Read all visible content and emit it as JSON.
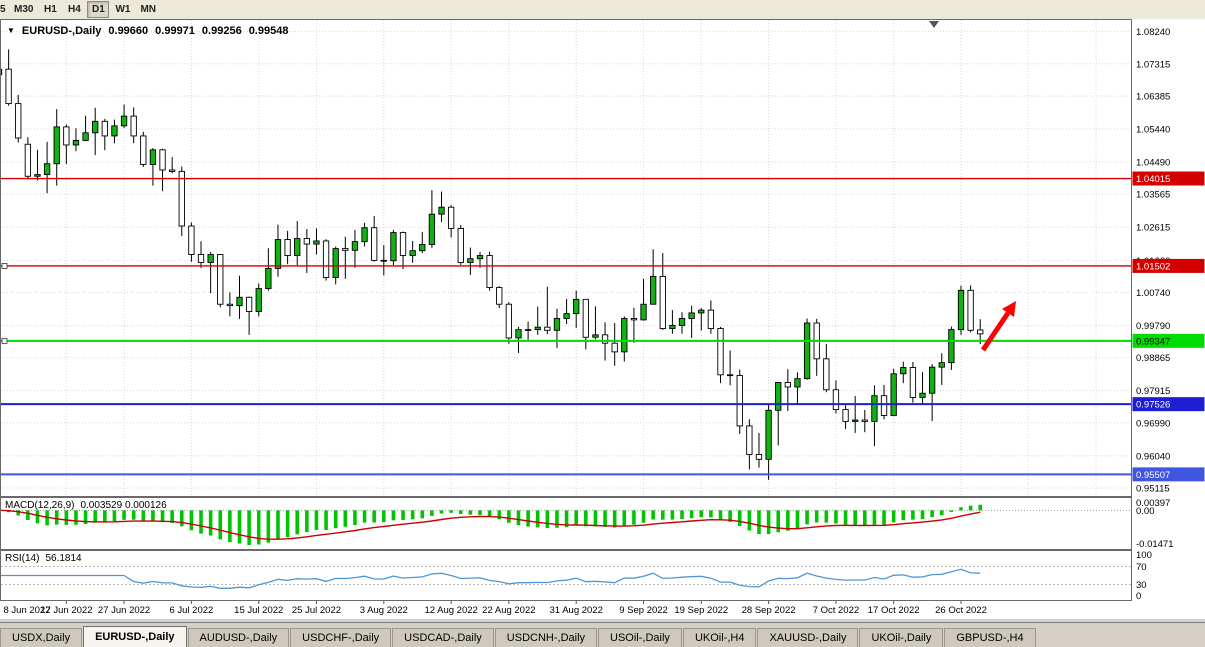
{
  "toolbar": {
    "timeframes": [
      "5",
      "M30",
      "H1",
      "H4",
      "D1",
      "W1",
      "MN"
    ],
    "active_timeframe": "D1"
  },
  "icons": {
    "symbol_dropdown": "▼"
  },
  "chart_header": {
    "symbol": "EURUSD-,Daily",
    "open": "0.99660",
    "high": "0.99971",
    "low": "0.99256",
    "close": "0.99548"
  },
  "chart_data": {
    "type": "candlestick",
    "symbol": "EURUSD-",
    "timeframe": "Daily",
    "x_labels": [
      "8 Jun 2022",
      "17 Jun 2022",
      "27 Jun 2022",
      "6 Jul 2022",
      "15 Jul 2022",
      "25 Jul 2022",
      "3 Aug 2022",
      "12 Aug 2022",
      "22 Aug 2022",
      "31 Aug 2022",
      "9 Sep 2022",
      "19 Sep 2022",
      "28 Sep 2022",
      "7 Oct 2022",
      "17 Oct 2022",
      "26 Oct 2022"
    ],
    "x_label_indices": [
      0,
      7,
      13,
      20,
      27,
      33,
      40,
      47,
      53,
      60,
      67,
      73,
      80,
      87,
      93,
      100
    ],
    "extra_grid_x": [
      1028,
      1096
    ],
    "y_axis_labels": [
      "1.08240",
      "1.07315",
      "1.06385",
      "1.05440",
      "1.04490",
      "1.03565",
      "1.02615",
      "1.01660",
      "1.00740",
      "0.99790",
      "0.98865",
      "0.97915",
      "0.96990",
      "0.96040",
      "0.95115"
    ],
    "y_range": [
      0.95,
      1.0843
    ],
    "colors": {
      "up": "#12b212",
      "down": "#ffffff",
      "outline": "#000000",
      "grid": "#d6d6d6"
    },
    "arrow_color": "#ff0000",
    "hlines": [
      {
        "price": 1.04015,
        "label": "1.04015",
        "color": "#d40000",
        "text_color": "#ffffff",
        "width": 1.4,
        "handle": false
      },
      {
        "price": 1.01502,
        "label": "1.01502",
        "color": "#d40000",
        "text_color": "#ffffff",
        "width": 1.4,
        "handle": true
      },
      {
        "price": 0.99347,
        "label": "0.99347",
        "color": "#00dc00",
        "text_color": "#000000",
        "width": 2,
        "handle": true
      },
      {
        "price": 0.97526,
        "label": "0.97526",
        "color": "#1e1ed2",
        "text_color": "#ffffff",
        "width": 2,
        "handle": false
      },
      {
        "price": 0.95507,
        "label": "0.95507",
        "color": "#4156e0",
        "text_color": "#ffffff",
        "width": 2,
        "handle": false
      }
    ],
    "candles": [
      [
        1.07,
        1.0749,
        1.069,
        1.0716
      ],
      [
        1.0716,
        1.0773,
        1.0611,
        1.0617
      ],
      [
        1.0617,
        1.0642,
        1.0505,
        1.0518
      ],
      [
        1.05,
        1.052,
        1.0399,
        1.0408
      ],
      [
        1.0408,
        1.0484,
        1.0396,
        1.0413
      ],
      [
        1.0413,
        1.0507,
        1.0359,
        1.0444
      ],
      [
        1.0444,
        1.0601,
        1.0381,
        1.055
      ],
      [
        1.055,
        1.0557,
        1.0443,
        1.0498
      ],
      [
        1.0498,
        1.0546,
        1.048,
        1.0511
      ],
      [
        1.0511,
        1.0582,
        1.0509,
        1.0533
      ],
      [
        1.0533,
        1.0605,
        1.0469,
        1.0566
      ],
      [
        1.0566,
        1.0573,
        1.0483,
        1.0524
      ],
      [
        1.0524,
        1.0571,
        1.0503,
        1.0553
      ],
      [
        1.0553,
        1.0614,
        1.0547,
        1.0581
      ],
      [
        1.0581,
        1.0606,
        1.0503,
        1.0524
      ],
      [
        1.0524,
        1.0536,
        1.0435,
        1.0442
      ],
      [
        1.0442,
        1.0489,
        1.0381,
        1.0484
      ],
      [
        1.0484,
        1.0487,
        1.0365,
        1.0426
      ],
      [
        1.0426,
        1.0463,
        1.0417,
        1.0422
      ],
      [
        1.0422,
        1.0436,
        1.0236,
        1.0265
      ],
      [
        1.0265,
        1.0275,
        1.0162,
        1.0183
      ],
      [
        1.0183,
        1.0221,
        1.0144,
        1.016
      ],
      [
        1.016,
        1.019,
        1.0072,
        1.0183
      ],
      [
        1.0183,
        1.0184,
        1.0031,
        1.004
      ],
      [
        1.004,
        1.0074,
        1.0005,
        1.0036
      ],
      [
        1.0036,
        1.0122,
        0.9998,
        1.006
      ],
      [
        1.006,
        1.0062,
        0.9952,
        1.0019
      ],
      [
        1.0019,
        1.01,
        1.0005,
        1.0085
      ],
      [
        1.0085,
        1.0201,
        1.0079,
        1.0143
      ],
      [
        1.0143,
        1.0269,
        1.0119,
        1.0226
      ],
      [
        1.0226,
        1.0251,
        1.0155,
        1.018
      ],
      [
        1.018,
        1.0279,
        1.0152,
        1.0229
      ],
      [
        1.0229,
        1.0256,
        1.013,
        1.0213
      ],
      [
        1.0213,
        1.0258,
        1.0183,
        1.0222
      ],
      [
        1.0222,
        1.0227,
        1.0108,
        1.0117
      ],
      [
        1.0117,
        1.0206,
        1.0097,
        1.02
      ],
      [
        1.02,
        1.0234,
        1.0113,
        1.0195
      ],
      [
        1.0195,
        1.0254,
        1.0145,
        1.022
      ],
      [
        1.022,
        1.0274,
        1.0206,
        1.026
      ],
      [
        1.026,
        1.0294,
        1.0163,
        1.0166
      ],
      [
        1.0166,
        1.021,
        1.0123,
        1.0165
      ],
      [
        1.0165,
        1.0254,
        1.0152,
        1.0246
      ],
      [
        1.0246,
        1.0249,
        1.0141,
        1.018
      ],
      [
        1.018,
        1.0222,
        1.0159,
        1.0194
      ],
      [
        1.0194,
        1.0248,
        1.0187,
        1.0212
      ],
      [
        1.0212,
        1.0368,
        1.0202,
        1.0299
      ],
      [
        1.0299,
        1.0364,
        1.0276,
        1.0319
      ],
      [
        1.0319,
        1.0325,
        1.0232,
        1.0258
      ],
      [
        1.0258,
        1.0268,
        1.0153,
        1.016
      ],
      [
        1.016,
        1.0203,
        1.0124,
        1.0171
      ],
      [
        1.0171,
        1.019,
        1.0145,
        1.018
      ],
      [
        1.018,
        1.0191,
        1.0079,
        1.0088
      ],
      [
        1.0088,
        1.0092,
        1.0029,
        1.004
      ],
      [
        1.004,
        1.0046,
        0.9926,
        0.9943
      ],
      [
        0.9943,
        0.9975,
        0.99,
        0.9967
      ],
      [
        0.9967,
        0.999,
        0.9938,
        0.9967
      ],
      [
        0.9967,
        1.0033,
        0.9952,
        0.9974
      ],
      [
        0.9974,
        1.009,
        0.9954,
        0.9965
      ],
      [
        0.9965,
        1.0027,
        0.9914,
        0.9999
      ],
      [
        0.9999,
        1.0055,
        0.9983,
        1.0013
      ],
      [
        1.0013,
        1.0079,
        0.9972,
        1.0054
      ],
      [
        1.0054,
        1.0055,
        0.991,
        0.9945
      ],
      [
        0.9945,
        1.0034,
        0.9939,
        0.9952
      ],
      [
        0.9952,
        0.9988,
        0.9878,
        0.9928
      ],
      [
        0.9928,
        0.9986,
        0.9863,
        0.9903
      ],
      [
        0.9903,
        1.0005,
        0.9875,
        0.9999
      ],
      [
        0.9999,
        1.003,
        0.9929,
        0.9995
      ],
      [
        0.9995,
        1.0113,
        0.9993,
        1.004
      ],
      [
        1.004,
        1.0198,
        1.004,
        1.012
      ],
      [
        1.012,
        1.0187,
        0.9966,
        0.997
      ],
      [
        0.997,
        1.0023,
        0.9955,
        0.9979
      ],
      [
        0.9979,
        1.0017,
        0.9955,
        0.9999
      ],
      [
        0.9999,
        1.0036,
        0.9943,
        1.0015
      ],
      [
        1.0015,
        1.0029,
        0.9964,
        1.0023
      ],
      [
        1.0023,
        1.0051,
        0.9955,
        0.997
      ],
      [
        0.997,
        0.9975,
        0.9813,
        0.9837
      ],
      [
        0.9837,
        0.9907,
        0.9807,
        0.9835
      ],
      [
        0.9835,
        0.9852,
        0.9667,
        0.969
      ],
      [
        0.969,
        0.9709,
        0.9565,
        0.9608
      ],
      [
        0.9608,
        0.967,
        0.957,
        0.9594
      ],
      [
        0.9594,
        0.975,
        0.9535,
        0.9735
      ],
      [
        0.9735,
        0.9816,
        0.9634,
        0.9815
      ],
      [
        0.9815,
        0.9853,
        0.9733,
        0.9802
      ],
      [
        0.9802,
        0.9844,
        0.9752,
        0.9826
      ],
      [
        0.9826,
        0.9999,
        0.9823,
        0.9986
      ],
      [
        0.9986,
        0.9998,
        0.9834,
        0.9883
      ],
      [
        0.9883,
        0.9926,
        0.9787,
        0.9794
      ],
      [
        0.9794,
        0.9821,
        0.9726,
        0.9737
      ],
      [
        0.9737,
        0.975,
        0.9681,
        0.9703
      ],
      [
        0.9703,
        0.9776,
        0.967,
        0.9707
      ],
      [
        0.9707,
        0.9736,
        0.9672,
        0.9703
      ],
      [
        0.9703,
        0.9807,
        0.9632,
        0.9777
      ],
      [
        0.9777,
        0.9808,
        0.9709,
        0.972
      ],
      [
        0.972,
        0.9854,
        0.9718,
        0.984
      ],
      [
        0.984,
        0.9875,
        0.9813,
        0.9858
      ],
      [
        0.9858,
        0.9874,
        0.9757,
        0.9772
      ],
      [
        0.9772,
        0.9845,
        0.9755,
        0.9784
      ],
      [
        0.9784,
        0.9868,
        0.9704,
        0.9859
      ],
      [
        0.9859,
        0.9899,
        0.9808,
        0.9872
      ],
      [
        0.9872,
        0.9976,
        0.9851,
        0.9967
      ],
      [
        0.9967,
        1.0093,
        0.9952,
        1.008
      ],
      [
        1.008,
        1.0094,
        0.9959,
        0.9965
      ],
      [
        0.9966,
        0.99971,
        0.99256,
        0.99548
      ]
    ]
  },
  "indicators": {
    "macd": {
      "label": "MACD(12,26,9)",
      "current": "0.003529 0.000126",
      "fast": 12,
      "slow": 26,
      "signal": 9,
      "axis_labels": [
        "0.00397",
        "0.00",
        "-0.01471"
      ],
      "histogram_color": "#00c400",
      "signal_color": "#cc0000"
    },
    "rsi": {
      "label": "RSI(14)",
      "current": "56.1814",
      "period": 14,
      "levels": [
        70,
        30
      ],
      "axis_labels": [
        "100",
        "70",
        "30",
        "0"
      ],
      "line_color": "#4f96d8"
    }
  },
  "tabs": {
    "items": [
      "USDX,Daily",
      "EURUSD-,Daily",
      "AUDUSD-,Daily",
      "USDCHF-,Daily",
      "USDCAD-,Daily",
      "USDCNH-,Daily",
      "USOil-,Daily",
      "UKOil-,H4",
      "XAUUSD-,Daily",
      "UKOil-,Daily",
      "GBPUSD-,H4"
    ],
    "active_index": 1
  }
}
